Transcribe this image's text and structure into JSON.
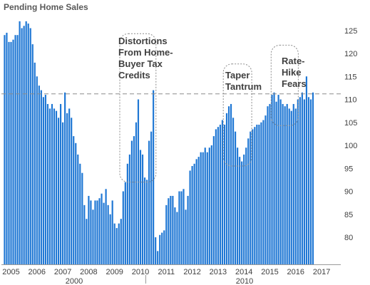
{
  "chart_data": {
    "type": "bar",
    "title": "Pending Home Sales",
    "xlabel": "",
    "ylabel": "",
    "ylim": [
      75,
      129
    ],
    "yticks": [
      "80",
      "85",
      "90",
      "95",
      "100",
      "105",
      "110",
      "115",
      "120",
      "125"
    ],
    "ytick_values": [
      80,
      85,
      90,
      95,
      100,
      105,
      110,
      115,
      120,
      125
    ],
    "xticks": [
      "2005",
      "2006",
      "2007",
      "2008",
      "2009",
      "2010",
      "2011",
      "2012",
      "2013",
      "2014",
      "2015",
      "2016",
      "2017"
    ],
    "xtick_values": [
      2005,
      2006,
      2007,
      2008,
      2009,
      2010,
      2011,
      2012,
      2013,
      2014,
      2015,
      2016,
      2017
    ],
    "x_group_labels": [
      "2000",
      "2010"
    ],
    "x_start": 2004.75,
    "x_step": 0.08333333,
    "reference_line": 111.2,
    "bar_color": "#1f77d4",
    "reference_line_color": "#8c8c8c",
    "annotations": [
      {
        "text": "Distortions From Home-Buyer Tax Credits",
        "lines": [
          "Distortions",
          "From Home-",
          "Buyer Tax",
          "Credits"
        ],
        "x_range": [
          2009.2,
          2010.6
        ],
        "y_range": [
          92,
          124.3
        ]
      },
      {
        "text": "Taper Tantrum",
        "lines": [
          "Taper",
          "Tantrum"
        ],
        "x_range": [
          2013.2,
          2014.3
        ],
        "y_range": [
          95.5,
          117.7
        ]
      },
      {
        "text": "Rate-Hike Fears",
        "lines": [
          "Rate-",
          "Hike",
          "Fears"
        ],
        "x_range": [
          2015.05,
          2016.1
        ],
        "y_range": [
          104.3,
          121.8
        ]
      }
    ],
    "values": [
      124,
      124.5,
      122.5,
      122.5,
      123,
      124,
      124,
      127,
      125.5,
      126,
      127,
      126.5,
      125.5,
      122,
      118,
      115,
      113,
      112,
      110.5,
      111,
      109,
      108,
      109,
      108,
      107.5,
      106,
      109,
      105,
      111.5,
      107,
      108,
      106,
      102,
      100.5,
      98,
      96,
      94,
      87,
      84,
      89,
      88,
      86,
      88,
      88,
      88.5,
      89.5,
      87.5,
      90.5,
      87,
      85,
      88,
      83,
      82,
      83,
      84,
      90,
      92,
      96,
      98,
      101,
      102,
      105,
      110,
      99,
      98,
      93,
      92.5,
      101,
      103,
      112,
      80,
      77,
      80.5,
      81,
      81.5,
      87,
      88.5,
      89,
      89,
      86.5,
      85.5,
      90,
      90,
      90.5,
      86,
      89,
      94.5,
      95.5,
      96,
      97,
      97.5,
      98.5,
      98.5,
      99.5,
      98.5,
      99.5,
      100,
      102,
      103.5,
      104,
      104.5,
      105.5,
      104.5,
      107,
      108.5,
      109,
      106,
      103,
      99.5,
      97.5,
      96.5,
      98,
      99.5,
      101.5,
      103,
      103.5,
      104,
      104.5,
      104.5,
      105,
      105.5,
      106.5,
      108.5,
      109,
      111,
      111.5,
      109.5,
      111,
      110,
      109,
      108.5,
      109,
      108,
      107.5,
      109,
      108,
      110,
      110.5,
      111.5,
      110,
      115,
      110.5,
      110,
      111.5
    ]
  }
}
